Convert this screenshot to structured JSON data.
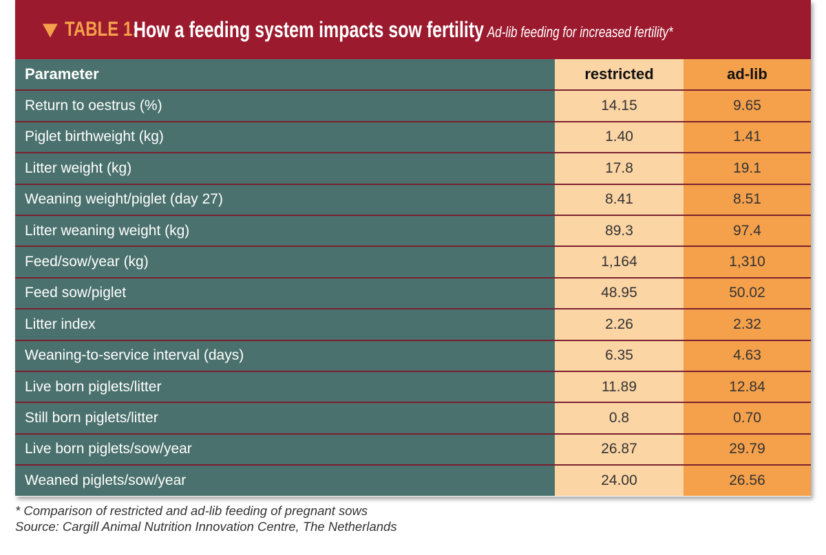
{
  "header": {
    "table_label": "TABLE 1:",
    "title": "How a feeding system impacts sow fertility",
    "subtitle": "Ad-lib feeding for increased fertility*",
    "icon": "triangle-down-icon"
  },
  "columns": [
    "Parameter",
    "restricted",
    "ad-lib"
  ],
  "rows": [
    [
      "Return to oestrus (%)",
      "14.15",
      "9.65"
    ],
    [
      "Piglet birthweight (kg)",
      "1.40",
      "1.41"
    ],
    [
      "Litter weight (kg)",
      "17.8",
      "19.1"
    ],
    [
      "Weaning weight/piglet (day 27)",
      "8.41",
      "8.51"
    ],
    [
      "Litter weaning weight (kg)",
      "89.3",
      "97.4"
    ],
    [
      "Feed/sow/year (kg)",
      "1,164",
      "1,310"
    ],
    [
      "Feed sow/piglet",
      "48.95",
      "50.02"
    ],
    [
      "Litter index",
      "2.26",
      "2.32"
    ],
    [
      "Weaning-to-service interval (days)",
      "6.35",
      "4.63"
    ],
    [
      "Live born piglets/litter",
      "11.89",
      "12.84"
    ],
    [
      "Still born piglets/litter",
      "0.8",
      "0.70"
    ],
    [
      "Live born piglets/sow/year",
      "26.87",
      "29.79"
    ],
    [
      "Weaned piglets/sow/year",
      "24.00",
      "26.56"
    ]
  ],
  "footnote": "* Comparison of restricted and ad-lib feeding of pregnant sows",
  "source": "Source: Cargill Animal Nutrition Innovation Centre, The Netherlands",
  "colors": {
    "banner": "#9b1a2e",
    "parameter_col": "#4a716d",
    "restricted_col": "#fcd5a5",
    "adlib_col": "#f5a04b"
  }
}
